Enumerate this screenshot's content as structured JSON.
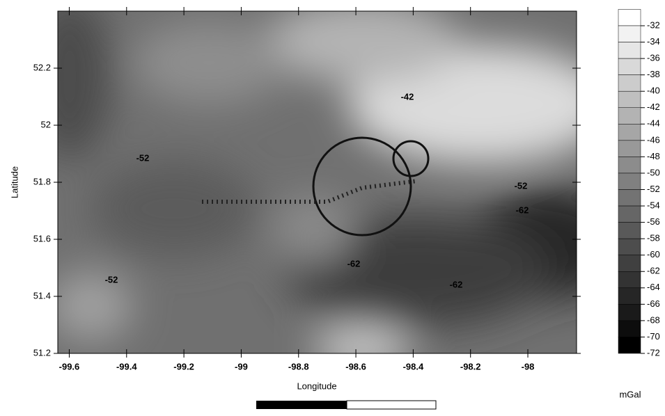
{
  "chart_data": {
    "type": "contour",
    "xlabel": "Longitude",
    "ylabel": "Latitude",
    "xlim": [
      -99.64,
      -97.83
    ],
    "ylim": [
      51.2,
      52.4
    ],
    "xticks": [
      -99.6,
      -99.4,
      -99.2,
      -99,
      -98.8,
      -98.6,
      -98.4,
      -98.2,
      -98
    ],
    "yticks": [
      51.2,
      51.4,
      51.6,
      51.8,
      52,
      52.2
    ],
    "grid": false,
    "colorbar_levels": [
      -32,
      -34,
      -36,
      -38,
      -40,
      -42,
      -44,
      -46,
      -48,
      -50,
      -52,
      -54,
      -56,
      -58,
      -60,
      -62,
      -64,
      -66,
      -68,
      -70,
      -72
    ],
    "colorbar_label": "mGal",
    "colormap": [
      "#ffffff",
      "#000000"
    ],
    "contour_labels": [
      -42,
      -52,
      -52,
      -52,
      -62,
      -62,
      -62
    ]
  }
}
